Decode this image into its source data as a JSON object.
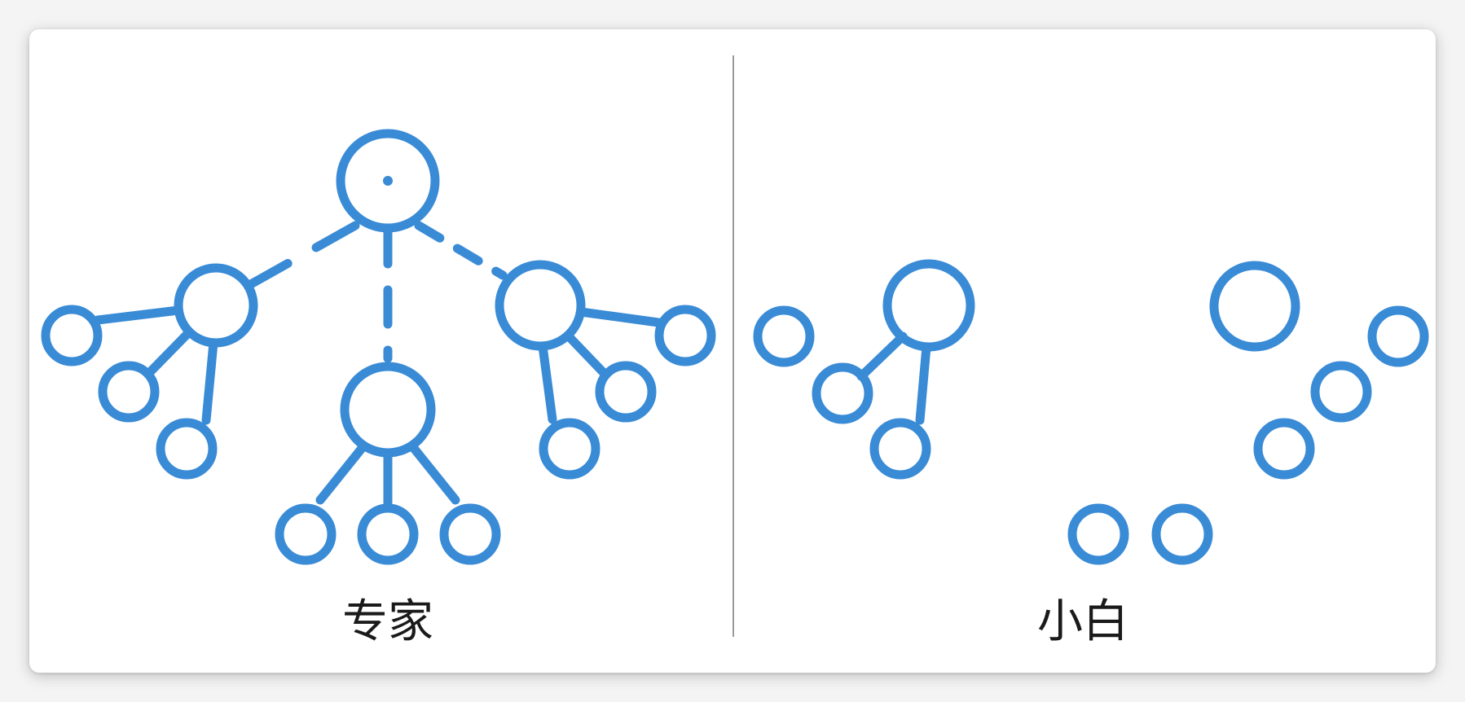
{
  "colors": {
    "node_stroke": "#3a8bd6",
    "divider": "#9a9a9a",
    "label_text": "#1a1a1a",
    "background": "#ffffff"
  },
  "left_panel": {
    "label": "专家"
  },
  "right_panel": {
    "label": "小白"
  }
}
